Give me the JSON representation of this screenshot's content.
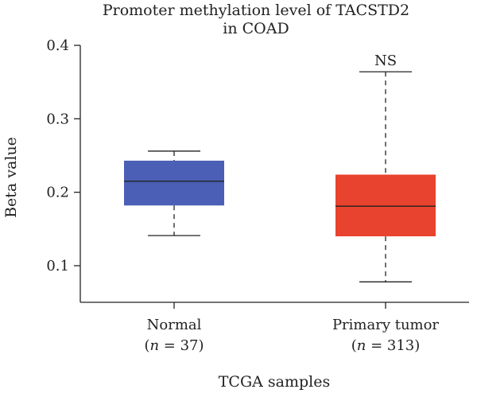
{
  "chart_data": {
    "type": "box",
    "title_lines": [
      "Promoter methylation level of TACSTD2",
      "in COAD"
    ],
    "xlabel": "TCGA samples",
    "ylabel": "Beta value",
    "ylim": [
      0.05,
      0.4
    ],
    "yticks": [
      0.1,
      0.2,
      0.3,
      0.4
    ],
    "ytick_labels": [
      "0.1",
      "0.2",
      "0.3",
      "0.4"
    ],
    "categories": [
      {
        "name": "Normal",
        "n_label": "n",
        "n_value": "= 37)",
        "color": "#4a5fb5",
        "whisker_low": 0.141,
        "q1": 0.182,
        "median": 0.215,
        "q3": 0.243,
        "whisker_high": 0.256,
        "annotation": ""
      },
      {
        "name": "Primary tumor",
        "n_label": "n",
        "n_value": "= 313)",
        "color": "#e8432e",
        "whisker_low": 0.078,
        "q1": 0.14,
        "median": 0.181,
        "q3": 0.224,
        "whisker_high": 0.364,
        "annotation": "NS"
      }
    ]
  }
}
